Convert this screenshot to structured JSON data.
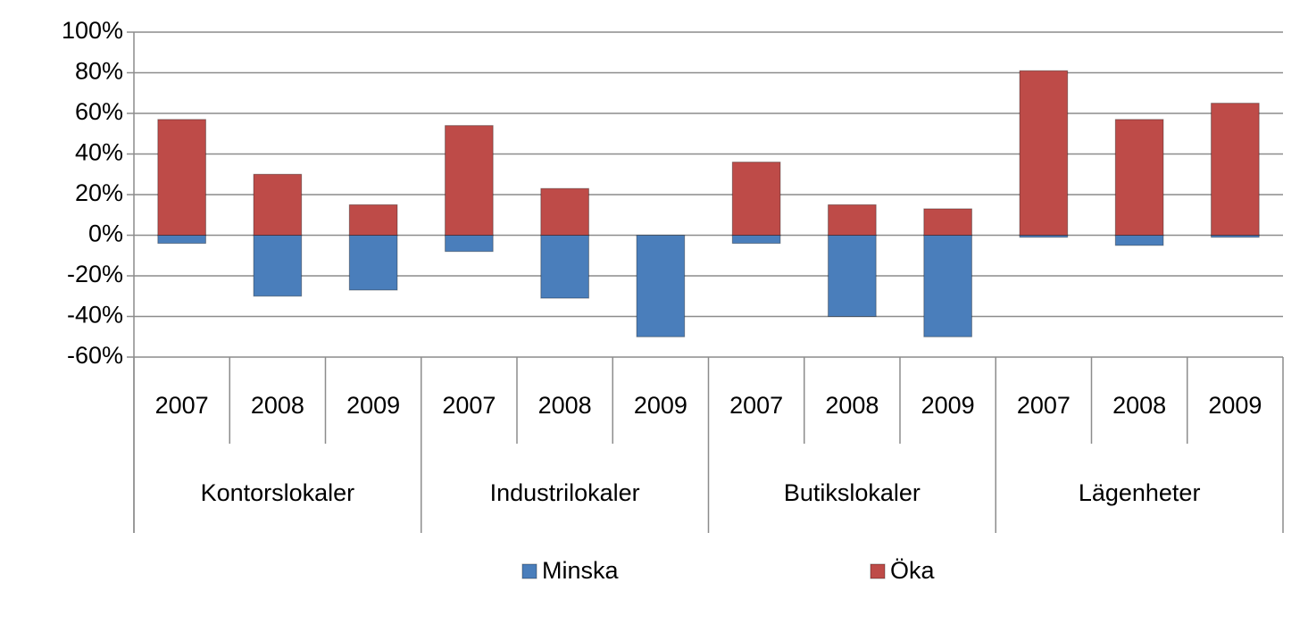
{
  "chart_data": {
    "type": "bar",
    "categories": [
      "2007",
      "2008",
      "2009",
      "2007",
      "2008",
      "2009",
      "2007",
      "2008",
      "2009",
      "2007",
      "2008",
      "2009"
    ],
    "groups": [
      "Kontorslokaler",
      "Industrilokaler",
      "Butikslokaler",
      "Lägenheter"
    ],
    "series": [
      {
        "name": "Minska",
        "color": "#4a7ebb",
        "values": [
          -4,
          -30,
          -27,
          -8,
          -31,
          -50,
          -4,
          -40,
          -50,
          -1,
          -5,
          -1
        ]
      },
      {
        "name": "Öka",
        "color": "#be4b48",
        "values": [
          57,
          30,
          15,
          54,
          23,
          0,
          36,
          15,
          13,
          81,
          57,
          65
        ]
      }
    ],
    "ylim": [
      -60,
      100
    ],
    "yticks": [
      {
        "value": -60,
        "label": "-60%"
      },
      {
        "value": -40,
        "label": "-40%"
      },
      {
        "value": -20,
        "label": "-20%"
      },
      {
        "value": 0,
        "label": "0%"
      },
      {
        "value": 20,
        "label": "20%"
      },
      {
        "value": 40,
        "label": "40%"
      },
      {
        "value": 60,
        "label": "60%"
      },
      {
        "value": 80,
        "label": "80%"
      },
      {
        "value": 100,
        "label": "100%"
      }
    ],
    "grid": true,
    "stacked": true,
    "legend": "bottom"
  }
}
